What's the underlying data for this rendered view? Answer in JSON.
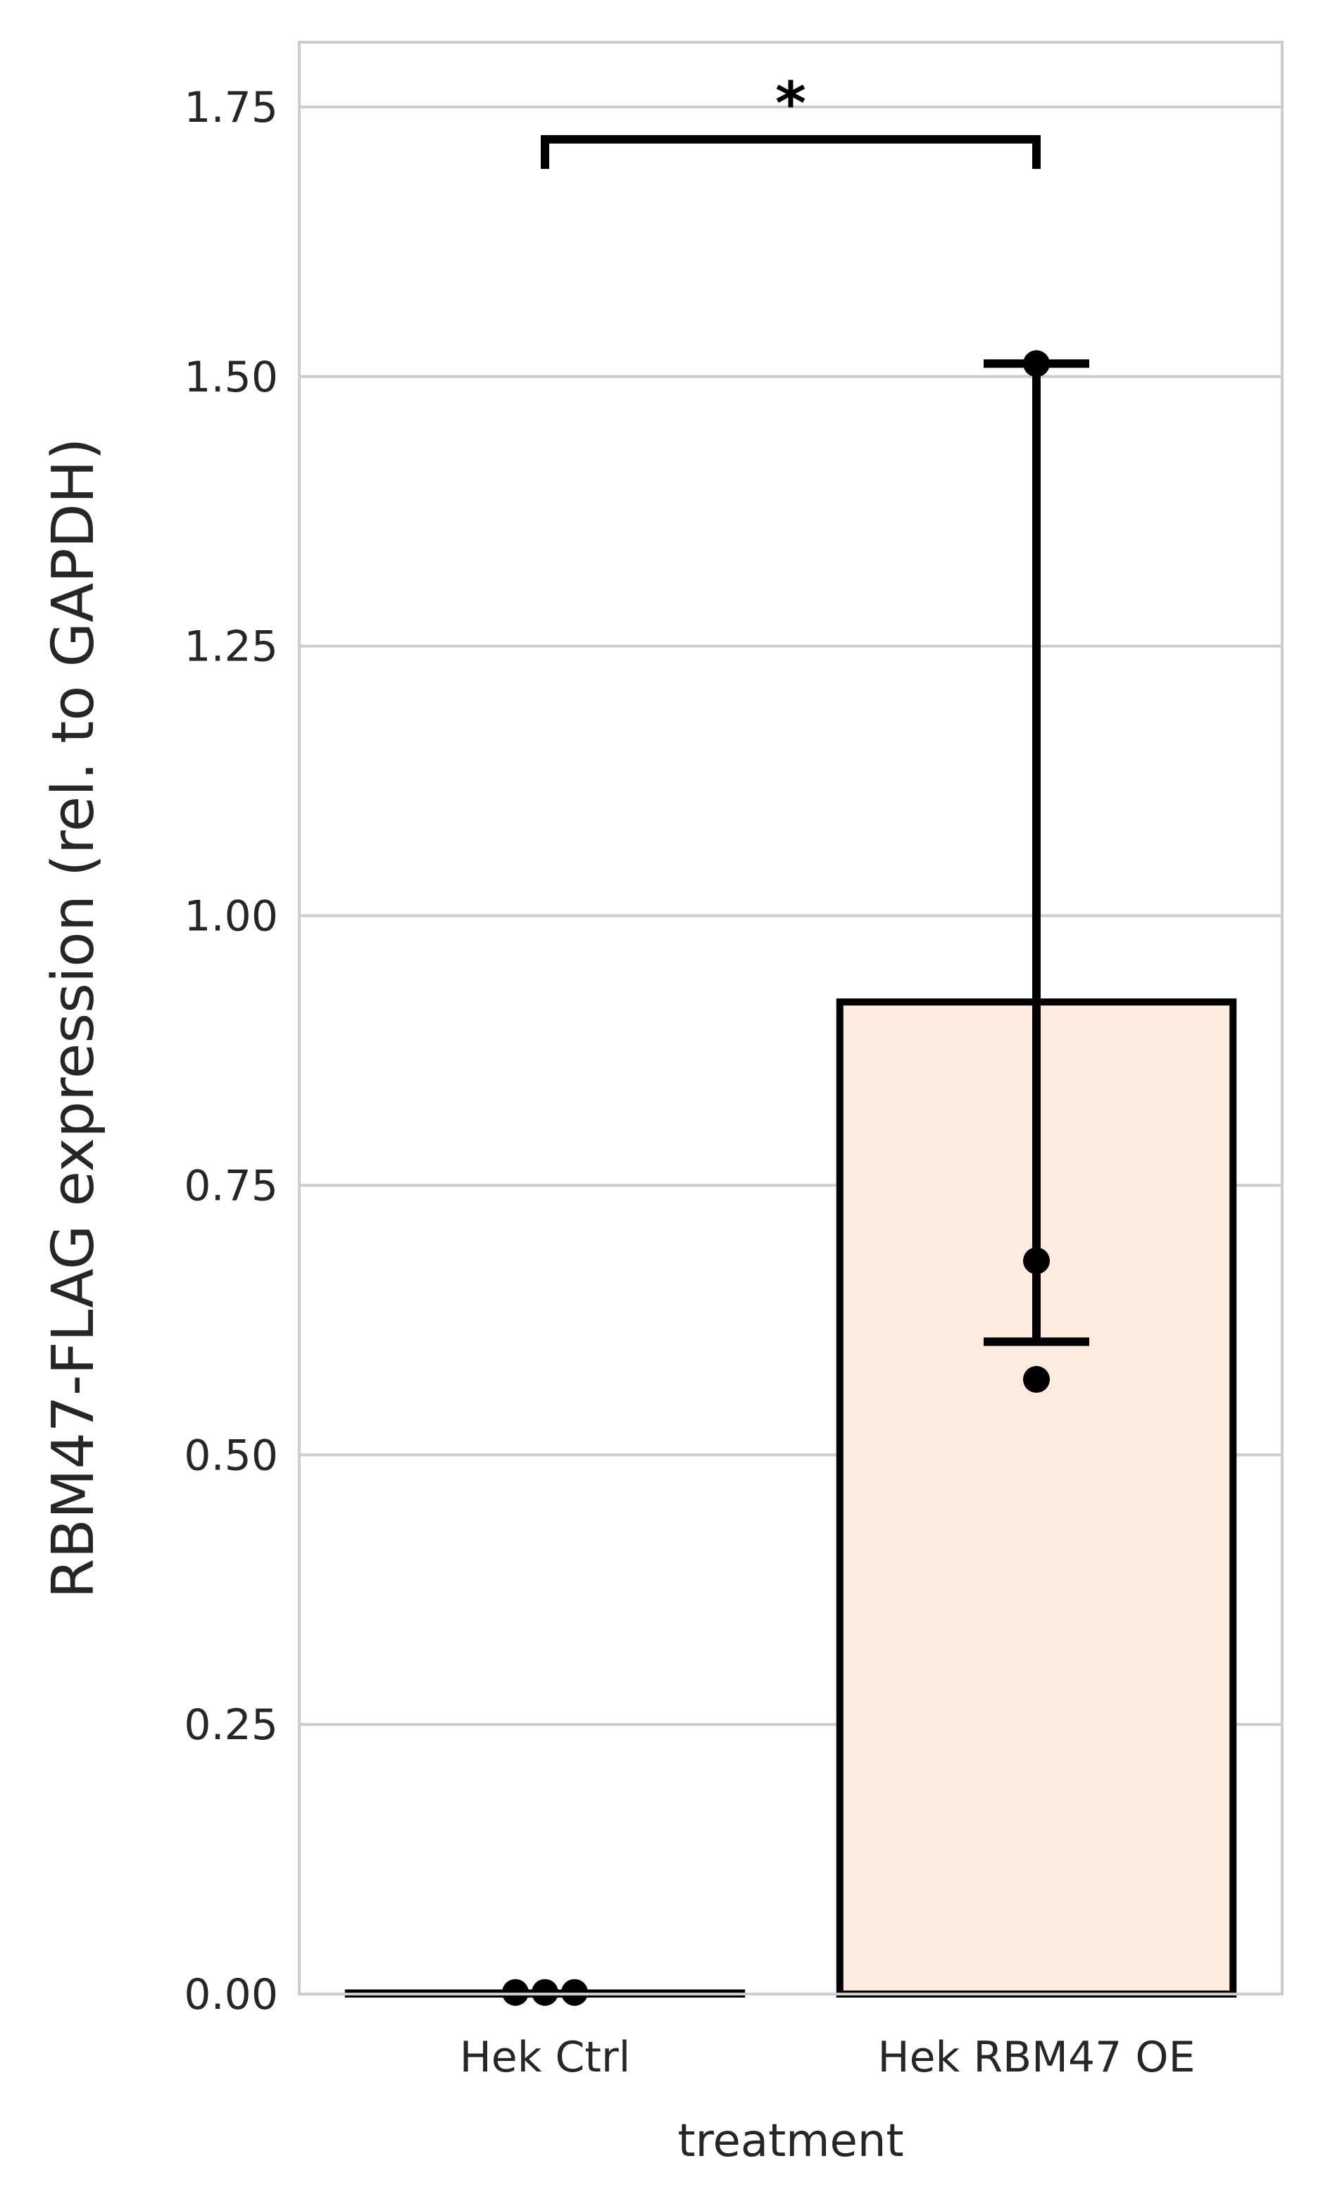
{
  "chart_data": {
    "type": "bar",
    "xlabel": "treatment",
    "ylabel": "RBM47-FLAG expression (rel. to GAPDH)",
    "categories": [
      "Hek Ctrl",
      "Hek RBM47 OE"
    ],
    "values": [
      0.001,
      0.92
    ],
    "error_bars": [
      {
        "low": 0.0,
        "high": 0.002
      },
      {
        "low": 0.605,
        "high": 1.512
      }
    ],
    "points": [
      [
        0.0015,
        0.0015,
        0.0015
      ],
      [
        1.512,
        0.68,
        0.57
      ]
    ],
    "bar_colors": [
      "#ffffff",
      "#fdebdf"
    ],
    "edge_color": "#000000",
    "ylim": [
      0,
      1.81
    ],
    "yticks": [
      "0.00",
      "0.25",
      "0.50",
      "0.75",
      "1.00",
      "1.25",
      "1.50",
      "1.75"
    ],
    "grid": true,
    "significance": {
      "from": 0,
      "to": 1,
      "y": 1.72,
      "label": "*"
    }
  }
}
